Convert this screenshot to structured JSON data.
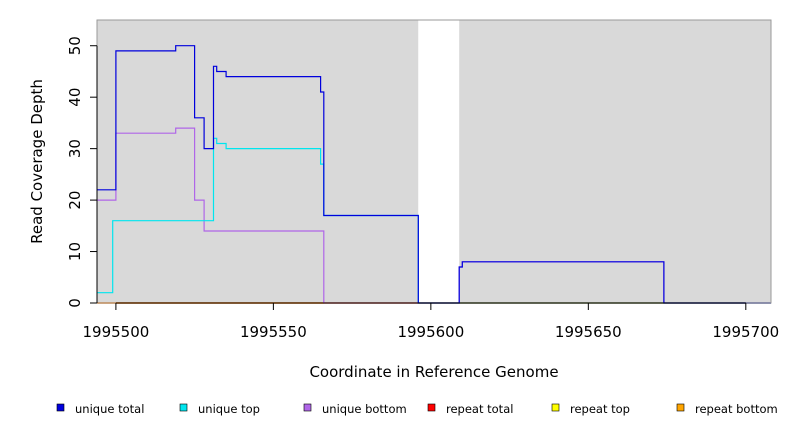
{
  "chart_data": {
    "type": "line",
    "title": "",
    "xlabel": "Coordinate in Reference Genome",
    "ylabel": "Read Coverage Depth",
    "xlim": [
      1995494,
      1995708
    ],
    "ylim": [
      0,
      55
    ],
    "x_ticks": [
      1995500,
      1995550,
      1995600,
      1995650,
      1995700
    ],
    "y_ticks": [
      0,
      10,
      20,
      30,
      40,
      50
    ],
    "grid": false,
    "background_color": "#d9d9d9",
    "gap_regions": [
      [
        1995596,
        1995609
      ]
    ],
    "legend_position": "bottom",
    "series": [
      {
        "name": "unique total",
        "color": "#0000dd",
        "points": [
          [
            1995494,
            22
          ],
          [
            1995500,
            22
          ],
          [
            1995500,
            49
          ],
          [
            1995519,
            49
          ],
          [
            1995519,
            50
          ],
          [
            1995525,
            50
          ],
          [
            1995525,
            36
          ],
          [
            1995528,
            36
          ],
          [
            1995528,
            30
          ],
          [
            1995531,
            30
          ],
          [
            1995531,
            46
          ],
          [
            1995532,
            46
          ],
          [
            1995532,
            45
          ],
          [
            1995535,
            45
          ],
          [
            1995535,
            44
          ],
          [
            1995565,
            44
          ],
          [
            1995565,
            41
          ],
          [
            1995566,
            41
          ],
          [
            1995566,
            17
          ],
          [
            1995596,
            17
          ],
          [
            1995596,
            0
          ],
          [
            1995609,
            0
          ],
          [
            1995609,
            7
          ],
          [
            1995610,
            7
          ],
          [
            1995610,
            8
          ],
          [
            1995674,
            8
          ],
          [
            1995674,
            0
          ],
          [
            1995708,
            0
          ]
        ]
      },
      {
        "name": "unique top",
        "color": "#00e5ee",
        "points": [
          [
            1995494,
            2
          ],
          [
            1995499,
            2
          ],
          [
            1995499,
            16
          ],
          [
            1995531,
            16
          ],
          [
            1995531,
            32
          ],
          [
            1995532,
            32
          ],
          [
            1995532,
            31
          ],
          [
            1995535,
            31
          ],
          [
            1995535,
            30
          ],
          [
            1995565,
            30
          ],
          [
            1995565,
            27
          ],
          [
            1995566,
            27
          ],
          [
            1995566,
            17
          ],
          [
            1995596,
            17
          ],
          [
            1995596,
            0
          ],
          [
            1995708,
            0
          ]
        ]
      },
      {
        "name": "unique bottom",
        "color": "#b066e8",
        "points": [
          [
            1995494,
            20
          ],
          [
            1995500,
            20
          ],
          [
            1995500,
            33
          ],
          [
            1995519,
            33
          ],
          [
            1995519,
            34
          ],
          [
            1995525,
            34
          ],
          [
            1995525,
            20
          ],
          [
            1995528,
            20
          ],
          [
            1995528,
            14
          ],
          [
            1995566,
            14
          ],
          [
            1995566,
            0
          ],
          [
            1995609,
            0
          ],
          [
            1995609,
            7
          ],
          [
            1995610,
            7
          ],
          [
            1995610,
            8
          ],
          [
            1995674,
            8
          ],
          [
            1995674,
            0
          ],
          [
            1995708,
            0
          ]
        ]
      },
      {
        "name": "repeat total",
        "color": "#ff0000",
        "points": [
          [
            1995494,
            0
          ],
          [
            1995708,
            0
          ]
        ]
      },
      {
        "name": "repeat top",
        "color": "#ffff00",
        "points": [
          [
            1995494,
            0
          ],
          [
            1995708,
            0
          ]
        ]
      },
      {
        "name": "repeat bottom",
        "color": "#ffa500",
        "points": [
          [
            1995494,
            0
          ],
          [
            1995566,
            0
          ]
        ]
      }
    ]
  }
}
